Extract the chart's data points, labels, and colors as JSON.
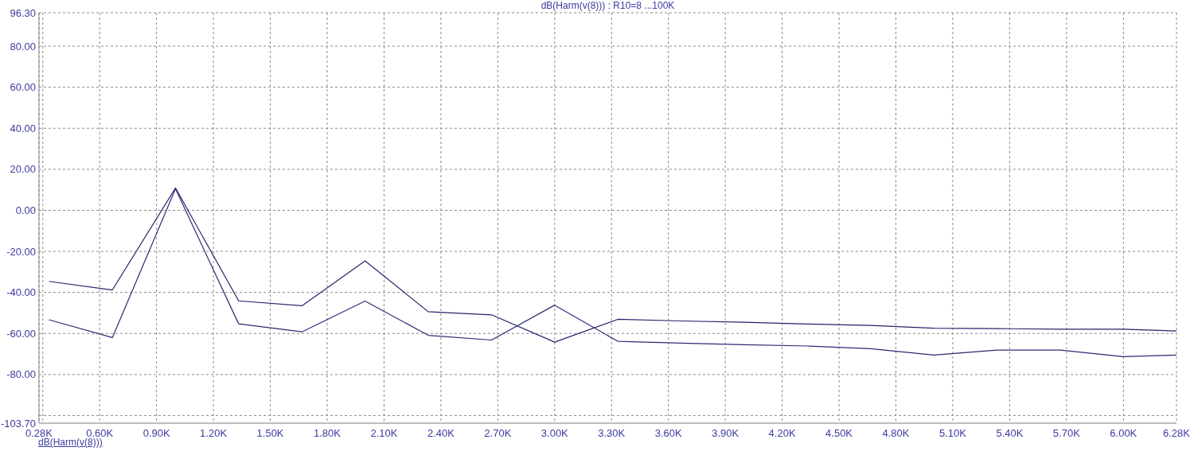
{
  "chart_data": {
    "type": "line",
    "title": "dB(Harm(v(8))) : R10=8 ...100K",
    "annotations": [
      "dB(Harm(v(8)))"
    ],
    "x": [
      0.333,
      0.667,
      1,
      1.333,
      1.667,
      2,
      2.333,
      2.667,
      3,
      3.333,
      3.667,
      4,
      4.333,
      4.667,
      5,
      5.333,
      5.667,
      6,
      6.28
    ],
    "series": [
      {
        "color": "#23236b",
        "values": [
          -34.6,
          -38.8,
          10.9,
          -44.1,
          -46.5,
          -24.6,
          -49.4,
          -50.9,
          -64.2,
          -53.1,
          -53.9,
          -54.5,
          -55.4,
          -56.1,
          -57.4,
          -57.6,
          -57.9,
          -57.9,
          -58.8
        ]
      },
      {
        "color": "#2a2a75",
        "values": [
          -53.3,
          -62.0,
          10.5,
          -55.3,
          -59.2,
          -44.2,
          -60.9,
          -63.2,
          -46.2,
          -63.8,
          -64.7,
          -65.5,
          -66.1,
          -67.4,
          -70.5,
          -68.1,
          -68.1,
          -71.3,
          -70.5
        ]
      }
    ],
    "xlim": [
      0.28,
      6.28
    ],
    "xticks": [
      {
        "value": 0.28,
        "label": "0.28K"
      },
      {
        "value": 0.3,
        "label": null
      },
      {
        "value": 0.6,
        "label": "0.60K"
      },
      {
        "value": 0.9,
        "label": "0.90K"
      },
      {
        "value": 1.2,
        "label": "1.20K"
      },
      {
        "value": 1.5,
        "label": "1.50K"
      },
      {
        "value": 1.8,
        "label": "1.80K"
      },
      {
        "value": 2.1,
        "label": "2.10K"
      },
      {
        "value": 2.4,
        "label": "2.40K"
      },
      {
        "value": 2.7,
        "label": "2.70K"
      },
      {
        "value": 3.0,
        "label": "3.00K"
      },
      {
        "value": 3.3,
        "label": "3.30K"
      },
      {
        "value": 3.6,
        "label": "3.60K"
      },
      {
        "value": 3.9,
        "label": "3.90K"
      },
      {
        "value": 4.2,
        "label": "4.20K"
      },
      {
        "value": 4.5,
        "label": "4.50K"
      },
      {
        "value": 4.8,
        "label": "4.80K"
      },
      {
        "value": 5.1,
        "label": "5.10K"
      },
      {
        "value": 5.4,
        "label": "5.40K"
      },
      {
        "value": 5.7,
        "label": "5.70K"
      },
      {
        "value": 6.0,
        "label": "6.00K"
      },
      {
        "value": 6.28,
        "label": "6.28K"
      }
    ],
    "ylim": [
      -103.7,
      96.3
    ],
    "yticks": [
      {
        "value": -103.7,
        "label": "-103.70"
      },
      {
        "value": -100,
        "label": null
      },
      {
        "value": -80,
        "label": "-80.00"
      },
      {
        "value": -60,
        "label": "-60.00"
      },
      {
        "value": -40,
        "label": "-40.00"
      },
      {
        "value": -20,
        "label": "-20.00"
      },
      {
        "value": 0,
        "label": "0.00"
      },
      {
        "value": 20,
        "label": "20.00"
      },
      {
        "value": 40,
        "label": "40.00"
      },
      {
        "value": 60,
        "label": "60.00"
      },
      {
        "value": 80,
        "label": "80.00"
      },
      {
        "value": 96.3,
        "label": "96.30"
      }
    ],
    "grid": true
  }
}
